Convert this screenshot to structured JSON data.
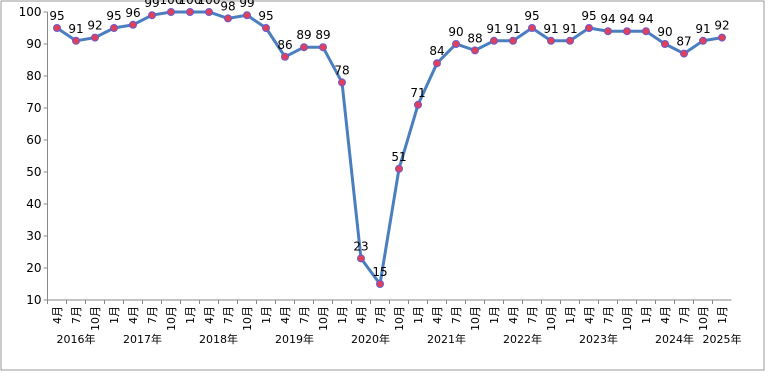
{
  "chart_data": {
    "type": "line",
    "categories": [
      "4月",
      "7月",
      "10月",
      "1月",
      "4月",
      "7月",
      "10月",
      "1月",
      "4月",
      "7月",
      "10月",
      "1月",
      "4月",
      "7月",
      "10月",
      "1月",
      "4月",
      "7月",
      "10月",
      "1月",
      "4月",
      "7月",
      "10月",
      "1月",
      "4月",
      "7月",
      "10月",
      "1月",
      "4月",
      "7月",
      "10月",
      "1月",
      "4月",
      "7月",
      "10月",
      "1月"
    ],
    "year_labels": [
      "2016年",
      "2017年",
      "2018年",
      "2019年",
      "2020年",
      "2021年",
      "2022年",
      "2023年",
      "2024年",
      "2025年"
    ],
    "series": [
      {
        "color": "#4a7ebf",
        "marker_color": "#e0405a",
        "values": [
          95,
          91,
          92,
          95,
          96,
          99,
          100,
          100,
          100,
          98,
          99,
          95,
          86,
          89,
          89,
          78,
          23,
          15,
          51,
          71,
          84,
          90,
          88,
          91,
          91,
          95,
          91,
          91,
          95,
          94,
          94,
          94,
          90,
          87,
          91,
          92
        ]
      }
    ],
    "ylim": [
      10,
      100
    ],
    "yticks": [
      10,
      20,
      30,
      40,
      50,
      60,
      70,
      80,
      90,
      100
    ],
    "grid": false
  }
}
